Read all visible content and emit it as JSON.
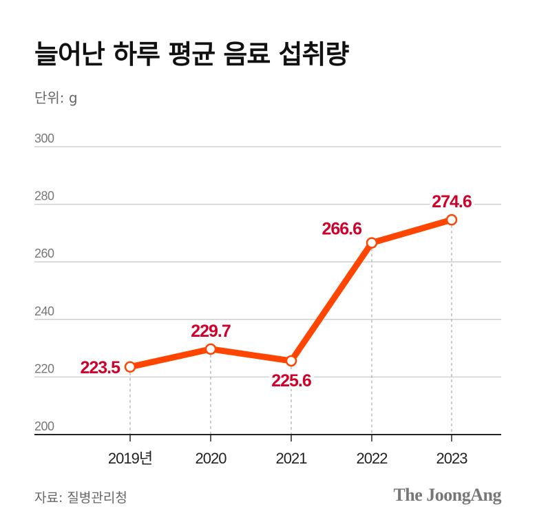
{
  "header": {
    "title": "늘어난 하루 평균 음료 섭취량",
    "unit": "단위: g"
  },
  "footer": {
    "source": "자료: 질병관리청",
    "brand": "The JoongAng"
  },
  "colors": {
    "line": "#ff4500",
    "label": "#d1002a",
    "grid": "#cfcfcf",
    "axis": "#222222",
    "tick_label": "#777777"
  },
  "chart_data": {
    "type": "line",
    "title": "늘어난 하루 평균 음료 섭취량",
    "xlabel": "",
    "ylabel": "단위: g",
    "categories": [
      "2019년",
      "2020",
      "2021",
      "2022",
      "2023"
    ],
    "series": [
      {
        "name": "하루 평균 음료 섭취량",
        "values": [
          223.5,
          229.7,
          225.6,
          266.6,
          274.6
        ]
      }
    ],
    "data_labels": [
      "223.5",
      "229.7",
      "225.6",
      "266.6",
      "274.6"
    ],
    "ylim": [
      200,
      300
    ],
    "yticks": [
      200,
      220,
      240,
      260,
      280,
      300
    ],
    "grid": true,
    "legend": "none",
    "source": "자료: 질병관리청"
  }
}
